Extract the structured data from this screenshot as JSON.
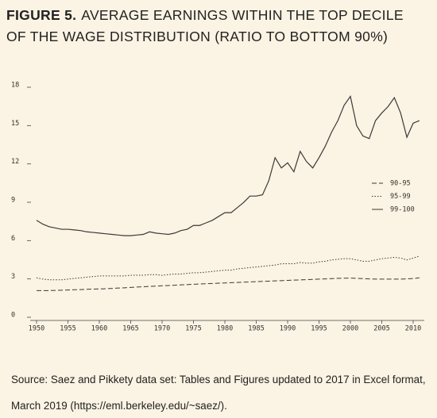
{
  "chart_data": {
    "type": "line",
    "figure_label": "FIGURE 5.",
    "title": "AVERAGE EARNINGS WITHIN THE TOP DECILE OF THE WAGE DISTRIBUTION (RATIO TO BOTTOM 90%)",
    "source": "Source: Saez and Pikkety data set: Tables and Figures updated to 2017 in Excel format, March 2019 (https://eml.berkeley.edu/~saez/).",
    "x": [
      1950,
      1951,
      1952,
      1953,
      1954,
      1955,
      1956,
      1957,
      1958,
      1959,
      1960,
      1961,
      1962,
      1963,
      1964,
      1965,
      1966,
      1967,
      1968,
      1969,
      1970,
      1971,
      1972,
      1973,
      1974,
      1975,
      1976,
      1977,
      1978,
      1979,
      1980,
      1981,
      1982,
      1983,
      1984,
      1985,
      1986,
      1987,
      1988,
      1989,
      1990,
      1991,
      1992,
      1993,
      1994,
      1995,
      1996,
      1997,
      1998,
      1999,
      2000,
      2001,
      2002,
      2003,
      2004,
      2005,
      2006,
      2007,
      2008,
      2009,
      2010,
      2011
    ],
    "series": [
      {
        "name": "90-95",
        "color": "#3a3a3a",
        "dash": "dashed",
        "values": [
          1.9,
          1.9,
          1.9,
          1.92,
          1.93,
          1.95,
          1.97,
          1.98,
          2.0,
          2.02,
          2.03,
          2.05,
          2.07,
          2.1,
          2.12,
          2.15,
          2.18,
          2.2,
          2.23,
          2.25,
          2.28,
          2.3,
          2.32,
          2.35,
          2.37,
          2.4,
          2.42,
          2.44,
          2.46,
          2.48,
          2.5,
          2.52,
          2.54,
          2.56,
          2.58,
          2.6,
          2.62,
          2.64,
          2.66,
          2.68,
          2.7,
          2.72,
          2.74,
          2.76,
          2.78,
          2.8,
          2.82,
          2.84,
          2.86,
          2.87,
          2.88,
          2.86,
          2.84,
          2.82,
          2.8,
          2.8,
          2.8,
          2.8,
          2.8,
          2.82,
          2.85,
          2.9
        ]
      },
      {
        "name": "95-99",
        "color": "#3a3a3a",
        "dash": "dotted",
        "values": [
          2.9,
          2.8,
          2.75,
          2.75,
          2.75,
          2.8,
          2.85,
          2.9,
          2.95,
          3.0,
          3.05,
          3.05,
          3.05,
          3.05,
          3.05,
          3.1,
          3.1,
          3.1,
          3.15,
          3.15,
          3.1,
          3.15,
          3.2,
          3.2,
          3.25,
          3.3,
          3.3,
          3.35,
          3.4,
          3.45,
          3.5,
          3.5,
          3.6,
          3.65,
          3.7,
          3.75,
          3.8,
          3.85,
          3.9,
          4.0,
          4.0,
          4.0,
          4.1,
          4.05,
          4.05,
          4.15,
          4.2,
          4.3,
          4.35,
          4.4,
          4.4,
          4.3,
          4.2,
          4.2,
          4.3,
          4.4,
          4.45,
          4.5,
          4.45,
          4.3,
          4.45,
          4.6
        ]
      },
      {
        "name": "99-100",
        "color": "#3a3a3a",
        "dash": "solid",
        "values": [
          7.4,
          7.1,
          6.9,
          6.8,
          6.7,
          6.7,
          6.65,
          6.6,
          6.5,
          6.45,
          6.4,
          6.35,
          6.3,
          6.25,
          6.2,
          6.2,
          6.25,
          6.3,
          6.5,
          6.4,
          6.35,
          6.3,
          6.4,
          6.6,
          6.7,
          7.0,
          7.0,
          7.2,
          7.4,
          7.7,
          8.0,
          8.0,
          8.4,
          8.8,
          9.3,
          9.3,
          9.4,
          10.5,
          12.3,
          11.5,
          11.9,
          11.2,
          12.8,
          12.0,
          11.5,
          12.3,
          13.2,
          14.3,
          15.2,
          16.4,
          17.1,
          14.8,
          14.0,
          13.8,
          15.2,
          15.8,
          16.3,
          17.0,
          15.8,
          13.9,
          15.0,
          15.2
        ]
      }
    ],
    "xlim": [
      1949,
      2012
    ],
    "xticks": [
      1950,
      1955,
      1960,
      1965,
      1970,
      1975,
      1980,
      1985,
      1990,
      1995,
      2000,
      2005,
      2010
    ],
    "ylim": [
      0,
      18
    ],
    "yticks": [
      0,
      3,
      6,
      9,
      12,
      15,
      18
    ],
    "legend": "right"
  }
}
